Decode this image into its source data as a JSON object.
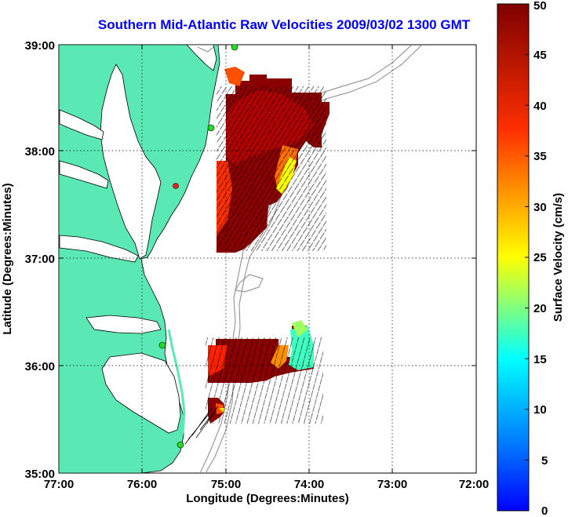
{
  "title": "Southern Mid-Atlantic Raw Velocities 2009/03/02 1300 GMT",
  "xaxis": {
    "label": "Longitude (Degrees:Minutes)",
    "ticks": [
      "77:00",
      "76:00",
      "75:00",
      "74:00",
      "73:00",
      "72:00"
    ]
  },
  "yaxis": {
    "label": "Latitude (Degrees:Minutes)",
    "ticks": [
      "39:00",
      "38:00",
      "37:00",
      "36:00",
      "35:00"
    ]
  },
  "colorbar": {
    "label": "Surface Velocity (cm/s)",
    "ticks": [
      "50",
      "45",
      "40",
      "35",
      "30",
      "25",
      "20",
      "15",
      "10",
      "5",
      "0"
    ],
    "range": [
      0,
      50
    ]
  },
  "colors": {
    "title": "#0000ff",
    "land": "#5ae8b4",
    "bathymetry": "#999999",
    "arrows": "#000000",
    "station_active": "#22dd22",
    "station_inactive": "#ee2222"
  },
  "map_extent": {
    "lon": [
      -77,
      -72
    ],
    "lat": [
      35,
      39
    ]
  },
  "stations": [
    {
      "status": "active"
    },
    {
      "status": "active"
    },
    {
      "status": "inactive"
    },
    {
      "status": "active"
    },
    {
      "status": "active"
    }
  ]
}
